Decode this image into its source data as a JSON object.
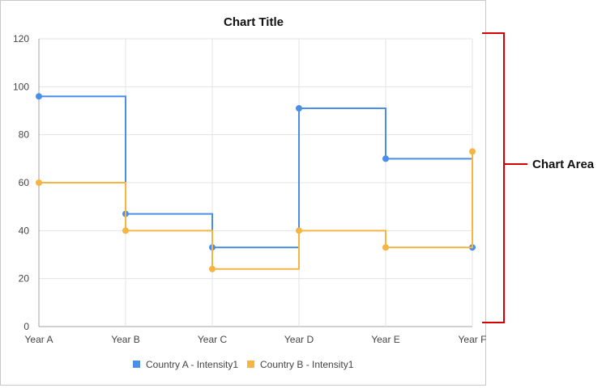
{
  "chart_data": {
    "type": "line",
    "step": true,
    "title": "Chart Title",
    "categories": [
      "Year A",
      "Year B",
      "Year C",
      "Year D",
      "Year E",
      "Year F"
    ],
    "ylim": [
      0,
      120
    ],
    "yticks": [
      0,
      20,
      40,
      60,
      80,
      100,
      120
    ],
    "grid": true,
    "legend_position": "bottom",
    "series": [
      {
        "name": "Country A - Intensity1",
        "color": "#4a8fe7",
        "values": [
          96,
          47,
          33,
          91,
          70,
          33
        ]
      },
      {
        "name": "Country B - Intensity1",
        "color": "#f6b443",
        "values": [
          60,
          40,
          24,
          40,
          33,
          73
        ]
      }
    ]
  },
  "annotation": {
    "label": "Chart Area",
    "color": "#d40000"
  }
}
